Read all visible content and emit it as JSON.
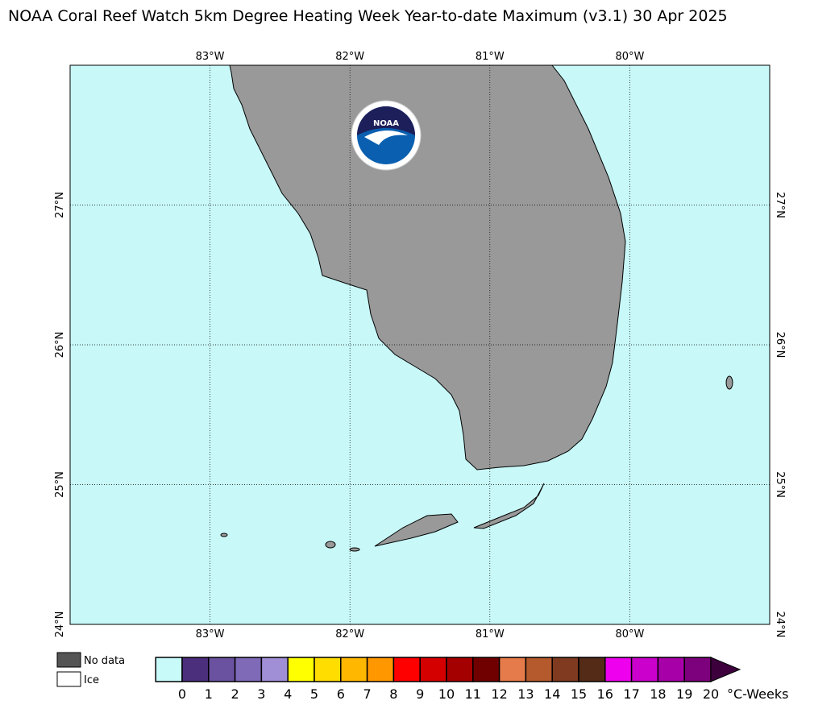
{
  "title": "NOAA Coral Reef Watch 5km Degree Heating Week Year-to-date Maximum  (v3.1)   30 Apr 2025",
  "map": {
    "lonlim": [
      -84,
      -79
    ],
    "latlim": [
      24,
      28
    ],
    "ocean_color": "#c8f8f8",
    "land_color": "#999999",
    "lonticks": [
      {
        "value": -83,
        "label": "83°W"
      },
      {
        "value": -82,
        "label": "82°W"
      },
      {
        "value": -81,
        "label": "81°W"
      },
      {
        "value": -80,
        "label": "80°W"
      }
    ],
    "latticks": [
      {
        "value": 24,
        "label": "24°N"
      },
      {
        "value": 25,
        "label": "25°N"
      },
      {
        "value": 26,
        "label": "26°N"
      },
      {
        "value": 27,
        "label": "27°N"
      }
    ]
  },
  "logo": {
    "label": "NOAA"
  },
  "legend": [
    {
      "label": "No data",
      "color": "#555555"
    },
    {
      "label": "Ice",
      "color": "#ffffff"
    }
  ],
  "colorbar": {
    "ticks": [
      0,
      1,
      2,
      3,
      4,
      5,
      6,
      7,
      8,
      9,
      10,
      11,
      12,
      13,
      14,
      15,
      16,
      17,
      18,
      19,
      20
    ],
    "colors": [
      "#c8fafa",
      "#4b2e7c",
      "#6a52a0",
      "#7f6ab8",
      "#a08ed6",
      "#ffff00",
      "#ffdd00",
      "#ffb700",
      "#ff9800",
      "#ff0000",
      "#d40000",
      "#a50000",
      "#700000",
      "#e57a4a",
      "#b55a2d",
      "#7f3a1f",
      "#532b17",
      "#ee00ee",
      "#cc00cc",
      "#a800a8",
      "#7d007d"
    ],
    "extend_color": "#3d003d",
    "unit": "°C-Weeks"
  }
}
